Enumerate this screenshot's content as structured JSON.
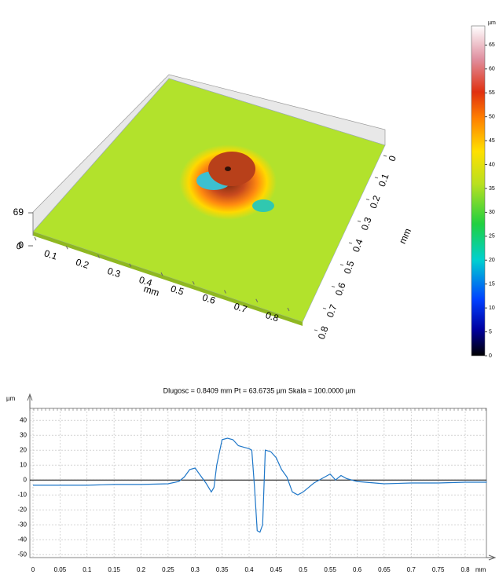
{
  "chart_data": [
    {
      "type": "surface",
      "x_label": "mm",
      "y_label": "mm",
      "xticks": [
        0,
        0.1,
        0.2,
        0.3,
        0.4,
        0.5,
        0.6,
        0.7,
        0.8
      ],
      "yticks": [
        0,
        0.1,
        0.2,
        0.3,
        0.4,
        0.5,
        0.6,
        0.7,
        0.8
      ],
      "xlim": [
        0,
        0.8
      ],
      "ylim": [
        0,
        0.8
      ],
      "zlim": [
        0,
        69
      ],
      "zticks": [
        0,
        69
      ],
      "colorbar_label": "µm",
      "colorbar_ticks": [
        0,
        5,
        10,
        15,
        20,
        25,
        30,
        35,
        40,
        45,
        50,
        55,
        60,
        65
      ]
    },
    {
      "type": "line",
      "title": "Dlugosc = 0.8409 mm  Pt = 63.6735 µm  Skala = 100.0000 µm",
      "y_label": "µm",
      "x_label": "mm",
      "xlim": [
        0,
        0.84
      ],
      "ylim": [
        -52,
        48
      ],
      "xticks": [
        0,
        0.05,
        0.1,
        0.15,
        0.2,
        0.25,
        0.3,
        0.35,
        0.4,
        0.45,
        0.5,
        0.55,
        0.6,
        0.65,
        0.7,
        0.75,
        0.8
      ],
      "yticks": [
        -50,
        -40,
        -30,
        -20,
        -10,
        0,
        10,
        20,
        30,
        40
      ],
      "grid": true,
      "series": [
        {
          "color": "#1f77c8",
          "x": [
            0,
            0.1,
            0.15,
            0.2,
            0.25,
            0.27,
            0.28,
            0.29,
            0.3,
            0.31,
            0.32,
            0.33,
            0.335,
            0.34,
            0.35,
            0.36,
            0.37,
            0.38,
            0.39,
            0.4,
            0.405,
            0.41,
            0.415,
            0.42,
            0.425,
            0.43,
            0.44,
            0.45,
            0.46,
            0.47,
            0.48,
            0.49,
            0.5,
            0.52,
            0.54,
            0.55,
            0.56,
            0.57,
            0.58,
            0.6,
            0.65,
            0.7,
            0.75,
            0.8,
            0.84
          ],
          "values": [
            -3.5,
            -3.5,
            -3,
            -3,
            -2.5,
            -1,
            2,
            7,
            8,
            3,
            -2,
            -8,
            -5,
            10,
            27,
            28,
            27,
            23,
            22,
            21,
            20,
            -5,
            -34,
            -35,
            -30,
            20,
            19,
            15,
            7,
            2,
            -8,
            -10,
            -8,
            -2,
            2,
            4,
            0,
            3,
            1,
            -1,
            -2.5,
            -2,
            -2,
            -1.5,
            -1.5
          ]
        }
      ]
    }
  ]
}
